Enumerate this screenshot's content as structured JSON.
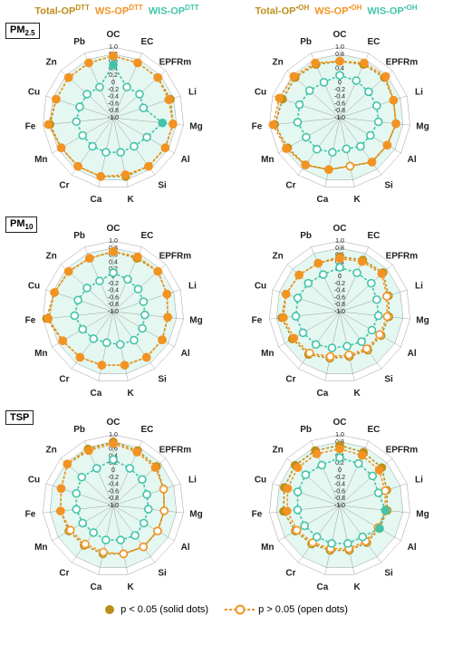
{
  "colors": {
    "total": "#bc8f1a",
    "ws": "#f39322",
    "wis": "#42c4a8",
    "bg_ring": "#e4f7f1",
    "grid": "#888888",
    "text": "#222222"
  },
  "axes": [
    "OC",
    "EC",
    "EPFRm",
    "Li",
    "Mg",
    "Al",
    "Si",
    "K",
    "Ca",
    "Cr",
    "Mn",
    "Fe",
    "Cu",
    "Zn",
    "Pb"
  ],
  "ticks": {
    "min": -1.0,
    "max": 1.0,
    "step": 0.2,
    "labels": [
      "1.0",
      "0.8",
      "0.6",
      "0.4",
      "0.2",
      "0",
      "-0.2",
      "-0.4",
      "-0.6",
      "-0.8",
      "-1.0"
    ]
  },
  "legend_headers": {
    "dtt": [
      {
        "label": "Total-OP",
        "sup": "DTT",
        "color": "total"
      },
      {
        "label": "WS-OP",
        "sup": "DTT",
        "color": "ws"
      },
      {
        "label": "WIS-OP",
        "sup": "DTT",
        "color": "wis"
      }
    ],
    "oh": [
      {
        "label": "Total-OP",
        "sup": "•OH",
        "color": "total"
      },
      {
        "label": "WS-OP",
        "sup": "•OH",
        "color": "ws"
      },
      {
        "label": "WIS-OP",
        "sup": "•OH",
        "color": "wis"
      }
    ]
  },
  "row_labels": [
    {
      "main": "PM",
      "sub": "2.5"
    },
    {
      "main": "PM",
      "sub": "10"
    },
    {
      "main": "TSP",
      "sub": ""
    }
  ],
  "legend_bottom": {
    "solid_text": "p < 0.05 (solid dots)",
    "open_text": "p > 0.05 (open dots)"
  },
  "panels": [
    {
      "row": "PM2.5",
      "col": "DTT",
      "total": {
        "v": [
          0.75,
          0.7,
          0.7,
          0.7,
          0.7,
          0.7,
          0.7,
          0.7,
          0.7,
          0.7,
          0.7,
          0.8,
          0.7,
          0.7,
          0.7
        ],
        "sig": [
          1,
          1,
          1,
          1,
          1,
          1,
          1,
          1,
          1,
          1,
          1,
          1,
          1,
          1,
          1
        ]
      },
      "ws": {
        "v": [
          0.75,
          0.7,
          0.7,
          0.65,
          0.7,
          0.7,
          0.7,
          0.65,
          0.7,
          0.7,
          0.7,
          0.85,
          0.7,
          0.7,
          0.7
        ],
        "sig": [
          1,
          1,
          1,
          1,
          1,
          1,
          1,
          1,
          1,
          1,
          1,
          1,
          1,
          1,
          1
        ]
      },
      "wis": {
        "v": [
          0.5,
          -0.05,
          0.0,
          -0.1,
          0.4,
          0.1,
          0.0,
          0.0,
          0.0,
          0.0,
          0.0,
          0.05,
          0.0,
          0.0,
          -0.05
        ],
        "sig": [
          1,
          0,
          0,
          0,
          1,
          0,
          0,
          0,
          0,
          0,
          0,
          0,
          0,
          0,
          0
        ]
      }
    },
    {
      "row": "PM2.5",
      "col": "OH",
      "total": {
        "v": [
          0.6,
          0.65,
          0.7,
          0.6,
          0.6,
          0.55,
          0.55,
          0.4,
          0.5,
          0.65,
          0.7,
          0.85,
          0.7,
          0.7,
          0.65
        ],
        "sig": [
          1,
          1,
          1,
          1,
          1,
          1,
          1,
          0,
          1,
          1,
          1,
          1,
          1,
          1,
          1
        ]
      },
      "ws": {
        "v": [
          0.6,
          0.7,
          0.75,
          0.6,
          0.6,
          0.55,
          0.55,
          0.4,
          0.5,
          0.65,
          0.75,
          0.9,
          0.8,
          0.75,
          0.7
        ],
        "sig": [
          1,
          1,
          1,
          1,
          1,
          1,
          1,
          0,
          1,
          1,
          1,
          1,
          1,
          1,
          1
        ]
      },
      "wis": {
        "v": [
          0.2,
          0.15,
          0.1,
          0.1,
          0.1,
          0.0,
          0.0,
          -0.1,
          0.0,
          0.1,
          0.1,
          0.2,
          0.2,
          0.15,
          0.1
        ],
        "sig": [
          0,
          0,
          0,
          0,
          0,
          0,
          0,
          0,
          0,
          0,
          0,
          0,
          0,
          0,
          0
        ]
      }
    },
    {
      "row": "PM10",
      "col": "DTT",
      "total": {
        "v": [
          0.7,
          0.65,
          0.7,
          0.6,
          0.55,
          0.6,
          0.6,
          0.55,
          0.55,
          0.6,
          0.65,
          0.9,
          0.75,
          0.7,
          0.65
        ],
        "sig": [
          1,
          1,
          1,
          1,
          1,
          1,
          1,
          1,
          1,
          1,
          1,
          1,
          1,
          1,
          1
        ]
      },
      "ws": {
        "v": [
          0.7,
          0.7,
          0.7,
          0.6,
          0.55,
          0.6,
          0.6,
          0.55,
          0.55,
          0.6,
          0.65,
          0.85,
          0.75,
          0.7,
          0.65
        ],
        "sig": [
          1,
          1,
          1,
          1,
          1,
          1,
          1,
          1,
          1,
          1,
          1,
          1,
          1,
          1,
          1
        ]
      },
      "wis": {
        "v": [
          0.1,
          0.0,
          -0.05,
          -0.1,
          -0.1,
          -0.05,
          0.0,
          -0.05,
          -0.1,
          -0.05,
          0.0,
          0.1,
          0.05,
          0.0,
          -0.05
        ],
        "sig": [
          0,
          0,
          0,
          0,
          0,
          0,
          0,
          0,
          0,
          0,
          0,
          0,
          0,
          0,
          0
        ]
      }
    },
    {
      "row": "PM10",
      "col": "OH",
      "total": {
        "v": [
          0.55,
          0.6,
          0.65,
          0.45,
          0.4,
          0.35,
          0.35,
          0.3,
          0.35,
          0.5,
          0.55,
          0.65,
          0.6,
          0.55,
          0.5
        ],
        "sig": [
          1,
          1,
          1,
          0,
          0,
          0,
          0,
          0,
          0,
          1,
          1,
          1,
          1,
          1,
          1
        ]
      },
      "ws": {
        "v": [
          0.5,
          0.55,
          0.6,
          0.4,
          0.35,
          0.3,
          0.3,
          0.25,
          0.3,
          0.45,
          0.5,
          0.6,
          0.6,
          0.55,
          0.5
        ],
        "sig": [
          1,
          1,
          1,
          0,
          0,
          0,
          0,
          0,
          0,
          0,
          1,
          1,
          1,
          1,
          1
        ]
      },
      "wis": {
        "v": [
          0.25,
          0.2,
          0.2,
          0.1,
          0.1,
          0.05,
          0.05,
          0.0,
          0.05,
          0.15,
          0.2,
          0.25,
          0.25,
          0.2,
          0.15
        ],
        "sig": [
          0,
          0,
          0,
          0,
          0,
          0,
          0,
          0,
          0,
          0,
          0,
          0,
          0,
          0,
          0
        ]
      }
    },
    {
      "row": "TSP",
      "col": "DTT",
      "total": {
        "v": [
          0.8,
          0.7,
          0.65,
          0.5,
          0.45,
          0.45,
          0.45,
          0.4,
          0.4,
          0.4,
          0.45,
          0.5,
          0.55,
          0.75,
          0.75
        ],
        "sig": [
          1,
          1,
          1,
          1,
          0,
          0,
          0,
          0,
          0,
          0,
          0,
          1,
          1,
          1,
          1
        ]
      },
      "ws": {
        "v": [
          0.75,
          0.65,
          0.6,
          0.5,
          0.45,
          0.45,
          0.45,
          0.4,
          0.35,
          0.35,
          0.4,
          0.5,
          0.55,
          0.75,
          0.7
        ],
        "sig": [
          1,
          1,
          1,
          0,
          0,
          0,
          0,
          0,
          0,
          0,
          0,
          1,
          1,
          1,
          1
        ]
      },
      "wis": {
        "v": [
          0.3,
          0.15,
          0.1,
          0.0,
          0.0,
          0.0,
          0.05,
          0.0,
          0.0,
          -0.05,
          0.0,
          0.05,
          0.1,
          0.2,
          0.15
        ],
        "sig": [
          0,
          0,
          0,
          0,
          0,
          0,
          0,
          0,
          0,
          0,
          0,
          0,
          0,
          0,
          0
        ]
      }
    },
    {
      "row": "TSP",
      "col": "OH",
      "total": {
        "v": [
          0.7,
          0.65,
          0.6,
          0.4,
          0.35,
          0.3,
          0.3,
          0.3,
          0.3,
          0.35,
          0.45,
          0.6,
          0.65,
          0.7,
          0.7
        ],
        "sig": [
          1,
          1,
          1,
          0,
          0,
          0,
          0,
          0,
          0,
          0,
          0,
          1,
          1,
          1,
          1
        ]
      },
      "ws": {
        "v": [
          0.6,
          0.55,
          0.5,
          0.35,
          0.3,
          0.25,
          0.25,
          0.25,
          0.25,
          0.3,
          0.4,
          0.5,
          0.55,
          0.6,
          0.6
        ],
        "sig": [
          1,
          1,
          1,
          0,
          0,
          0,
          0,
          0,
          0,
          0,
          0,
          1,
          1,
          1,
          1
        ]
      },
      "wis": {
        "v": [
          0.35,
          0.3,
          0.25,
          0.15,
          0.3,
          0.3,
          0.1,
          0.1,
          0.1,
          0.1,
          0.15,
          0.2,
          0.25,
          0.3,
          0.25
        ],
        "sig": [
          0,
          0,
          0,
          0,
          1,
          1,
          0,
          0,
          0,
          0,
          0,
          0,
          0,
          0,
          0
        ]
      }
    }
  ]
}
